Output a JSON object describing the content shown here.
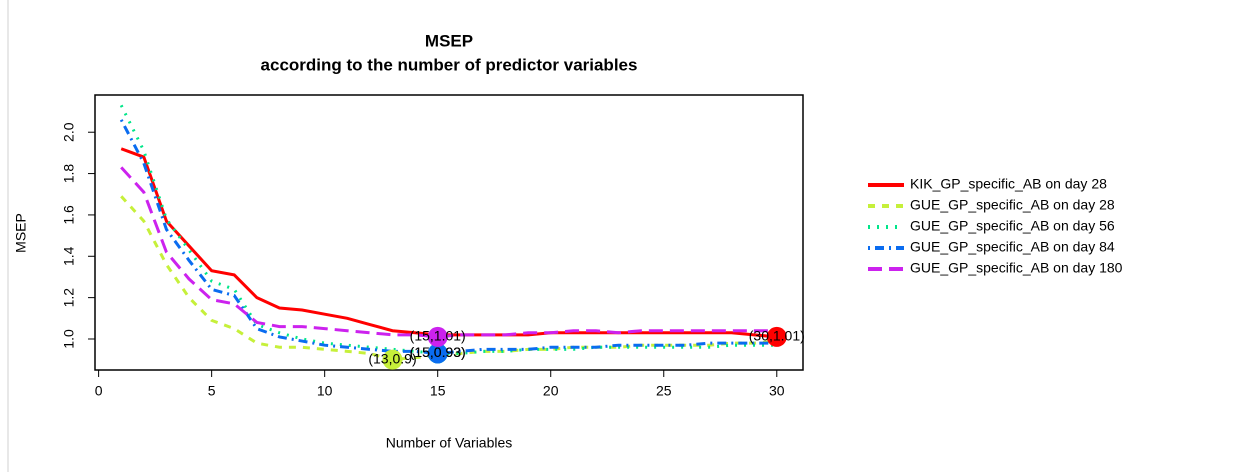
{
  "chart_data": {
    "type": "line",
    "title": "MSEP",
    "subtitle": "according to the number of predictor variables",
    "x_label": "Number of Variables",
    "y_label": "MSEP",
    "x": [
      1,
      2,
      3,
      4,
      5,
      6,
      7,
      8,
      9,
      10,
      11,
      12,
      13,
      14,
      15,
      16,
      17,
      18,
      19,
      20,
      21,
      22,
      23,
      24,
      25,
      26,
      27,
      28,
      29,
      30
    ],
    "series": [
      {
        "name": "KIK_GP_specific_AB on day 28",
        "color": "#ff0000",
        "dash": "none",
        "values": [
          1.92,
          1.88,
          1.57,
          1.45,
          1.33,
          1.31,
          1.2,
          1.15,
          1.14,
          1.12,
          1.1,
          1.07,
          1.04,
          1.03,
          1.02,
          1.02,
          1.02,
          1.02,
          1.02,
          1.03,
          1.03,
          1.03,
          1.03,
          1.03,
          1.03,
          1.03,
          1.03,
          1.03,
          1.02,
          1.01
        ]
      },
      {
        "name": "GUE_GP_specific_AB on day 28",
        "color": "#c6f03a",
        "dash": "7,7",
        "values": [
          1.69,
          1.57,
          1.36,
          1.2,
          1.09,
          1.05,
          0.98,
          0.96,
          0.96,
          0.95,
          0.94,
          0.93,
          0.9,
          0.91,
          0.92,
          0.93,
          0.94,
          0.94,
          0.95,
          0.95,
          0.96,
          0.96,
          0.96,
          0.97,
          0.97,
          0.97,
          0.97,
          0.98,
          0.98,
          0.99
        ]
      },
      {
        "name": "GUE_GP_specific_AB on day 56",
        "color": "#00e68a",
        "dash": "2,7",
        "values": [
          2.13,
          1.91,
          1.58,
          1.43,
          1.28,
          1.24,
          1.07,
          1.03,
          1.0,
          0.98,
          0.97,
          0.96,
          0.95,
          0.94,
          0.93,
          0.93,
          0.94,
          0.94,
          0.95,
          0.95,
          0.95,
          0.96,
          0.96,
          0.96,
          0.96,
          0.96,
          0.96,
          0.97,
          0.97,
          0.97
        ]
      },
      {
        "name": "GUE_GP_specific_AB on day 84",
        "color": "#0a6cf0",
        "dash": "2,5,9,5",
        "values": [
          2.06,
          1.85,
          1.53,
          1.38,
          1.24,
          1.21,
          1.05,
          1.01,
          0.99,
          0.97,
          0.96,
          0.95,
          0.94,
          0.94,
          0.93,
          0.94,
          0.95,
          0.95,
          0.95,
          0.96,
          0.96,
          0.96,
          0.97,
          0.97,
          0.97,
          0.97,
          0.98,
          0.98,
          0.98,
          0.98
        ]
      },
      {
        "name": "GUE_GP_specific_AB on day 180",
        "color": "#cc22ee",
        "dash": "14,7",
        "values": [
          1.83,
          1.71,
          1.42,
          1.29,
          1.19,
          1.17,
          1.08,
          1.06,
          1.06,
          1.05,
          1.04,
          1.03,
          1.02,
          1.02,
          1.01,
          1.02,
          1.02,
          1.02,
          1.03,
          1.03,
          1.04,
          1.04,
          1.03,
          1.04,
          1.04,
          1.04,
          1.04,
          1.04,
          1.04,
          1.04
        ]
      }
    ],
    "annotations": [
      {
        "x": 30,
        "y": 1.01,
        "label": "(30,1.01)",
        "color": "#ff0000"
      },
      {
        "x": 13,
        "y": 0.9,
        "label": "(13,0.9)",
        "color": "#c6f03a"
      },
      {
        "x": 15,
        "y": 0.93,
        "label": "(15,0.93)",
        "color": "#00e68a"
      },
      {
        "x": 15,
        "y": 0.93,
        "label": "(15,0.93)",
        "color": "#0a6cf0"
      },
      {
        "x": 15,
        "y": 1.01,
        "label": "(15,1.01)",
        "color": "#cc22ee"
      }
    ],
    "xlim": [
      -0.16,
      31.16
    ],
    "ylim": [
      0.85,
      2.18
    ],
    "xticks": [
      0,
      5,
      10,
      15,
      20,
      25,
      30
    ],
    "yticks": [
      {
        "value": 1,
        "label": "1.0"
      },
      1.2,
      1.4,
      1.6,
      1.8,
      {
        "value": 2,
        "label": "2.0"
      }
    ],
    "legend": "right"
  }
}
